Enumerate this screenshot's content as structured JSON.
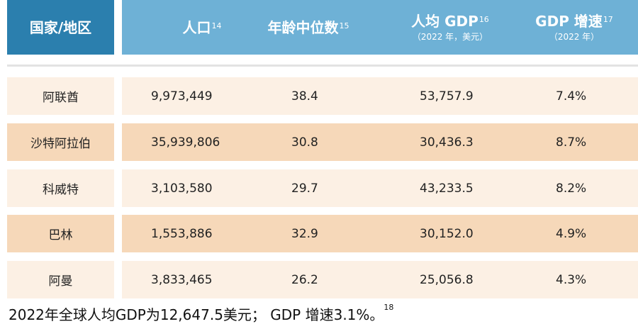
{
  "table": {
    "headers": {
      "country": "国家/地区",
      "population": {
        "label": "人口",
        "note": "14"
      },
      "median_age": {
        "label": "年龄中位数",
        "note": "15"
      },
      "gdp_per_capita": {
        "label": "人均 GDP",
        "note": "16",
        "sub": "（2022 年，美元）"
      },
      "gdp_growth": {
        "label": "GDP 增速",
        "note": "17",
        "sub": "（2022 年）"
      }
    },
    "rows": [
      {
        "country": "阿联酋",
        "population": "9,973,449",
        "median_age": "38.4",
        "gdp_per_capita": "53,757.9",
        "gdp_growth": "7.4%"
      },
      {
        "country": "沙特阿拉伯",
        "population": "35,939,806",
        "median_age": "30.8",
        "gdp_per_capita": "30,436.3",
        "gdp_growth": "8.7%"
      },
      {
        "country": "科威特",
        "population": "3,103,580",
        "median_age": "29.7",
        "gdp_per_capita": "43,233.5",
        "gdp_growth": "8.2%"
      },
      {
        "country": "巴林",
        "population": "1,553,886",
        "median_age": "32.9",
        "gdp_per_capita": "30,152.0",
        "gdp_growth": "4.9%"
      },
      {
        "country": "阿曼",
        "population": "3,833,465",
        "median_age": "26.2",
        "gdp_per_capita": "25,056.8",
        "gdp_growth": "4.3%"
      }
    ]
  },
  "footnote": {
    "text": "2022年全球人均GDP为12,647.5美元； GDP 增速3.1%。",
    "note": "18"
  },
  "colors": {
    "header_first": "#2b7fae",
    "header_band": "#6eb1d6",
    "row_light": "#fcf0e4",
    "row_dark": "#f6d8b9"
  }
}
